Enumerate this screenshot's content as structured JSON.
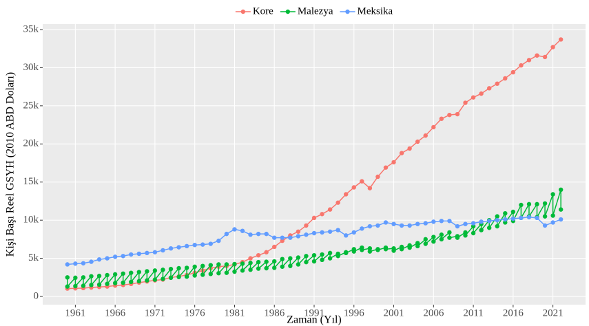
{
  "chart_data": {
    "type": "line",
    "xlabel": "Zaman (Yıl)",
    "ylabel": "Kişi Başı Reel GSYH (2010 ABD Doları)",
    "xlim": [
      1956.9,
      2025.1
    ],
    "xticks": [
      1961,
      1966,
      1971,
      1976,
      1981,
      1986,
      1991,
      1996,
      2001,
      2006,
      2011,
      2016,
      2021
    ],
    "ylim": [
      -1080,
      35720
    ],
    "yticks": [
      0,
      {
        "value": 5000,
        "label": "5k"
      },
      {
        "value": 10000,
        "label": "10k"
      },
      {
        "value": 15000,
        "label": "15k"
      },
      {
        "value": 20000,
        "label": "20k"
      },
      {
        "value": 25000,
        "label": "25k"
      },
      {
        "value": 30000,
        "label": "30k"
      },
      {
        "value": 35000,
        "label": "35k"
      }
    ],
    "grid": true,
    "legend": "top",
    "series": [
      {
        "name": "Kore",
        "color": "#F8766D",
        "x": [
          1960,
          1961,
          1962,
          1963,
          1964,
          1965,
          1966,
          1967,
          1968,
          1969,
          1970,
          1971,
          1972,
          1973,
          1974,
          1975,
          1976,
          1977,
          1978,
          1979,
          1980,
          1981,
          1982,
          1983,
          1984,
          1985,
          1986,
          1987,
          1988,
          1989,
          1990,
          1991,
          1992,
          1993,
          1994,
          1995,
          1996,
          1997,
          1998,
          1999,
          2000,
          2001,
          2002,
          2003,
          2004,
          2005,
          2006,
          2007,
          2008,
          2009,
          2010,
          2011,
          2012,
          2013,
          2014,
          2015,
          2016,
          2017,
          2018,
          2019,
          2020,
          2021,
          2022
        ],
        "values": [
          1030,
          1060,
          1100,
          1170,
          1240,
          1300,
          1420,
          1500,
          1640,
          1820,
          1960,
          2110,
          2210,
          2480,
          2630,
          2810,
          3100,
          3400,
          3700,
          3900,
          4000,
          4200,
          4500,
          5000,
          5400,
          5800,
          6500,
          7300,
          8000,
          8500,
          9300,
          10300,
          10800,
          11400,
          12300,
          13400,
          14300,
          15100,
          14200,
          15700,
          16900,
          17600,
          18800,
          19400,
          20300,
          21100,
          22200,
          23300,
          23800,
          23900,
          25400,
          26100,
          26600,
          27300,
          27900,
          28600,
          29400,
          30300,
          31000,
          31600,
          31400,
          32700,
          33700
        ]
      },
      {
        "name": "Malezya",
        "color": "#00BA38",
        "x": [
          1960,
          1960,
          1961,
          1961,
          1962,
          1962,
          1963,
          1963,
          1964,
          1964,
          1965,
          1965,
          1966,
          1966,
          1967,
          1967,
          1968,
          1968,
          1969,
          1969,
          1970,
          1970,
          1971,
          1971,
          1972,
          1972,
          1973,
          1973,
          1974,
          1974,
          1975,
          1975,
          1976,
          1976,
          1977,
          1977,
          1978,
          1978,
          1979,
          1979,
          1980,
          1980,
          1981,
          1981,
          1982,
          1982,
          1983,
          1983,
          1984,
          1984,
          1985,
          1985,
          1986,
          1986,
          1987,
          1987,
          1988,
          1988,
          1989,
          1989,
          1990,
          1990,
          1991,
          1991,
          1992,
          1992,
          1993,
          1993,
          1994,
          1994,
          1995,
          1995,
          1996,
          1996,
          1997,
          1997,
          1998,
          1998,
          1999,
          1999,
          2000,
          2000,
          2001,
          2001,
          2002,
          2002,
          2003,
          2003,
          2004,
          2004,
          2005,
          2005,
          2006,
          2006,
          2007,
          2007,
          2008,
          2008,
          2009,
          2009,
          2010,
          2010,
          2011,
          2011,
          2012,
          2012,
          2013,
          2013,
          2014,
          2014,
          2015,
          2015,
          2016,
          2016,
          2017,
          2017,
          2018,
          2018,
          2019,
          2019,
          2020,
          2020,
          2021,
          2021,
          2022,
          2022
        ],
        "values": [
          2500,
          1300,
          2450,
          1350,
          2500,
          1400,
          2650,
          1500,
          2700,
          1550,
          2800,
          1650,
          2900,
          1750,
          3000,
          1800,
          3100,
          1900,
          3200,
          2000,
          3300,
          2100,
          3400,
          2200,
          3500,
          2300,
          3600,
          2450,
          3700,
          2550,
          3750,
          2600,
          3900,
          2750,
          4000,
          2850,
          4100,
          2950,
          4200,
          3050,
          4200,
          3100,
          4250,
          3250,
          4300,
          3400,
          4400,
          3500,
          4500,
          3650,
          4550,
          3700,
          4600,
          3750,
          4900,
          3900,
          5000,
          4000,
          5100,
          4200,
          5300,
          4500,
          5400,
          4600,
          5500,
          4800,
          5700,
          5000,
          5600,
          5300,
          5800,
          5700,
          6200,
          5900,
          6400,
          6100,
          6300,
          5900,
          6200,
          6100,
          6400,
          6200,
          6300,
          6000,
          6500,
          6200,
          6700,
          6400,
          7000,
          6600,
          7500,
          6900,
          7800,
          7200,
          8100,
          7500,
          8400,
          7700,
          7900,
          7700,
          8400,
          8000,
          9200,
          8300,
          9500,
          8700,
          10000,
          9000,
          10500,
          9200,
          10900,
          9700,
          11100,
          9900,
          12000,
          10300,
          12100,
          10500,
          12100,
          10400,
          12200,
          10500,
          13400,
          10600,
          14000,
          11400
        ]
      },
      {
        "name": "Meksika",
        "color": "#619CFF",
        "x": [
          1960,
          1961,
          1962,
          1963,
          1964,
          1965,
          1966,
          1967,
          1968,
          1969,
          1970,
          1971,
          1972,
          1973,
          1974,
          1975,
          1976,
          1977,
          1978,
          1979,
          1980,
          1981,
          1982,
          1983,
          1984,
          1985,
          1986,
          1987,
          1988,
          1989,
          1990,
          1991,
          1992,
          1993,
          1994,
          1995,
          1996,
          1997,
          1998,
          1999,
          2000,
          2001,
          2002,
          2003,
          2004,
          2005,
          2006,
          2007,
          2008,
          2009,
          2010,
          2011,
          2012,
          2013,
          2014,
          2015,
          2016,
          2017,
          2018,
          2019,
          2020,
          2021,
          2022
        ],
        "values": [
          4200,
          4300,
          4350,
          4550,
          4850,
          5000,
          5200,
          5300,
          5500,
          5600,
          5700,
          5800,
          6050,
          6300,
          6450,
          6600,
          6750,
          6800,
          6900,
          7300,
          8200,
          8800,
          8600,
          8100,
          8200,
          8200,
          7700,
          7700,
          7700,
          7900,
          8100,
          8300,
          8400,
          8500,
          8700,
          8000,
          8400,
          8900,
          9200,
          9300,
          9700,
          9500,
          9300,
          9300,
          9500,
          9600,
          9800,
          9900,
          9900,
          9200,
          9500,
          9600,
          9800,
          9900,
          10000,
          10100,
          10200,
          10300,
          10400,
          10300,
          9300,
          9700,
          10100
        ]
      }
    ]
  }
}
